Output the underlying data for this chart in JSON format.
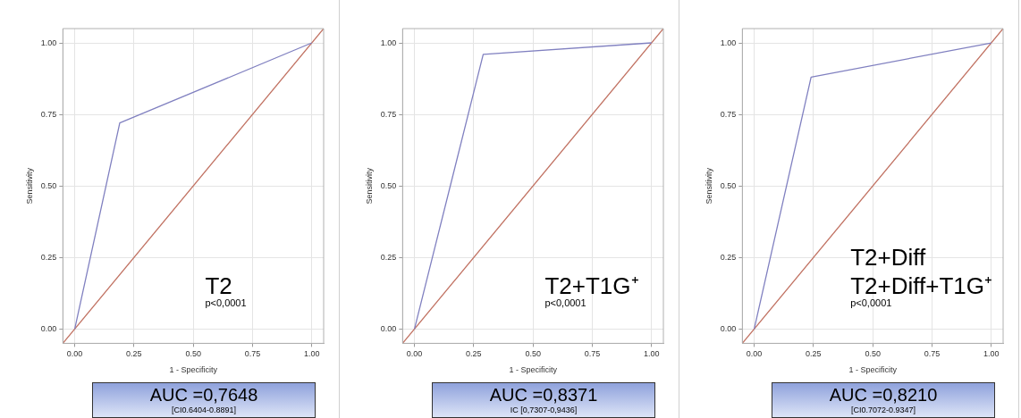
{
  "chart_data": [
    {
      "type": "line",
      "xlabel": "1 - Specificity",
      "ylabel": "Sensitivity",
      "xlim": [
        -0.05,
        1.05
      ],
      "ylim": [
        -0.05,
        1.05
      ],
      "xticks": [
        {
          "value": 0,
          "label": "0.00"
        },
        {
          "value": 0.25,
          "label": "0.25"
        },
        {
          "value": 0.5,
          "label": "0.50"
        },
        {
          "value": 0.75,
          "label": "0.75"
        },
        {
          "value": 1,
          "label": "1.00"
        }
      ],
      "yticks": [
        {
          "value": 0,
          "label": "0.00"
        },
        {
          "value": 0.25,
          "label": "0.25"
        },
        {
          "value": 0.5,
          "label": "0.50"
        },
        {
          "value": 0.75,
          "label": "0.75"
        },
        {
          "value": 1,
          "label": "1.00"
        }
      ],
      "grid": true,
      "legend": false,
      "marker": "none",
      "line_style": "solid",
      "series": [
        {
          "color": "#8080c0",
          "x": [
            0,
            0.19,
            1
          ],
          "values": [
            0,
            0.72,
            1
          ]
        },
        {
          "color": "#c07060",
          "x": [
            -0.05,
            1.05
          ],
          "values": [
            -0.05,
            1.05
          ]
        }
      ],
      "annotations": [
        "T2",
        "p<0,0001",
        "AUC =0,7648",
        "[CI0.6404-0.8891]"
      ]
    },
    {
      "type": "line",
      "xlabel": "1 - Specificity",
      "ylabel": "Sensitivity",
      "xlim": [
        -0.05,
        1.05
      ],
      "ylim": [
        -0.05,
        1.05
      ],
      "xticks": [
        {
          "value": 0,
          "label": "0.00"
        },
        {
          "value": 0.25,
          "label": "0.25"
        },
        {
          "value": 0.5,
          "label": "0.50"
        },
        {
          "value": 0.75,
          "label": "0.75"
        },
        {
          "value": 1,
          "label": "1.00"
        }
      ],
      "yticks": [
        {
          "value": 0,
          "label": "0.00"
        },
        {
          "value": 0.25,
          "label": "0.25"
        },
        {
          "value": 0.5,
          "label": "0.50"
        },
        {
          "value": 0.75,
          "label": "0.75"
        },
        {
          "value": 1,
          "label": "1.00"
        }
      ],
      "grid": true,
      "legend": false,
      "marker": "none",
      "line_style": "solid",
      "series": [
        {
          "color": "#8080c0",
          "x": [
            0,
            0.29,
            1
          ],
          "values": [
            0,
            0.96,
            1
          ]
        },
        {
          "color": "#c07060",
          "x": [
            -0.05,
            1.05
          ],
          "values": [
            -0.05,
            1.05
          ]
        }
      ],
      "annotations": [
        "T2+T1G⁺",
        "p<0,0001",
        "AUC =0,8371",
        "IC [0,7307-0,9436]"
      ]
    },
    {
      "type": "line",
      "xlabel": "1 - Specificity",
      "ylabel": "Sensitivity",
      "xlim": [
        -0.05,
        1.05
      ],
      "ylim": [
        -0.05,
        1.05
      ],
      "xticks": [
        {
          "value": 0,
          "label": "0.00"
        },
        {
          "value": 0.25,
          "label": "0.25"
        },
        {
          "value": 0.5,
          "label": "0.50"
        },
        {
          "value": 0.75,
          "label": "0.75"
        },
        {
          "value": 1,
          "label": "1.00"
        }
      ],
      "yticks": [
        {
          "value": 0,
          "label": "0.00"
        },
        {
          "value": 0.25,
          "label": "0.25"
        },
        {
          "value": 0.5,
          "label": "0.50"
        },
        {
          "value": 0.75,
          "label": "0.75"
        },
        {
          "value": 1,
          "label": "1.00"
        }
      ],
      "grid": true,
      "legend": false,
      "marker": "none",
      "line_style": "solid",
      "series": [
        {
          "color": "#8080c0",
          "x": [
            0,
            0.24,
            1
          ],
          "values": [
            0,
            0.88,
            1
          ]
        },
        {
          "color": "#c07060",
          "x": [
            -0.05,
            1.05
          ],
          "values": [
            -0.05,
            1.05
          ]
        }
      ],
      "annotations": [
        "T2+Diff",
        "T2+Diff+T1G⁺",
        "p<0,0001",
        "AUC =0,8210",
        "[CI0.7072-0.9347]"
      ]
    }
  ]
}
